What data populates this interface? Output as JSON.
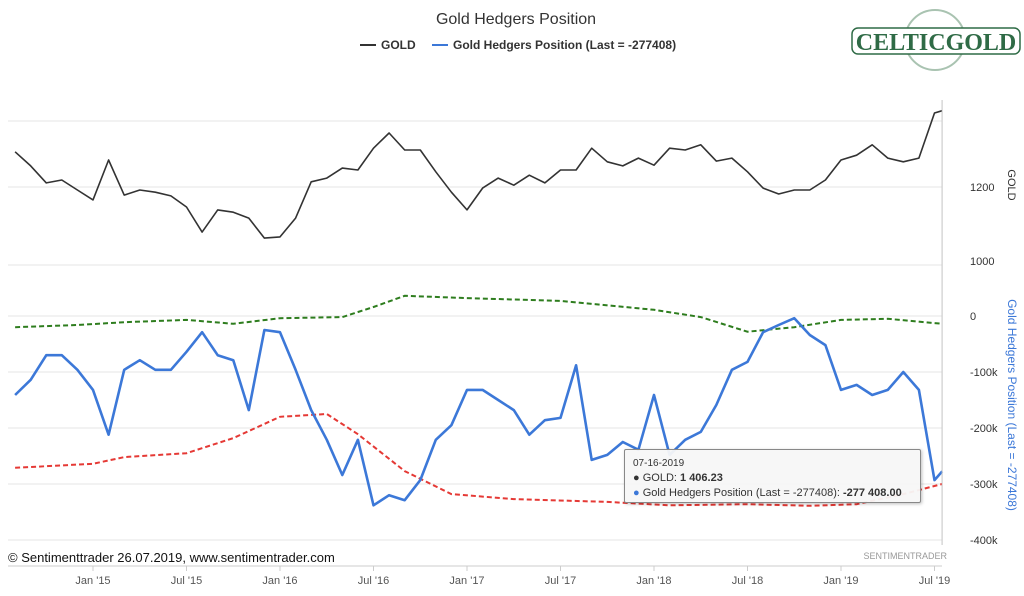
{
  "chart_data": {
    "type": "line",
    "title": "Gold Hedgers Position",
    "legend_position": "top",
    "grid": true,
    "x_ticks": [
      "Jan '15",
      "Jul '15",
      "Jan '16",
      "Jul '16",
      "Jan '17",
      "Jul '17",
      "Jan '18",
      "Jul '18",
      "Jan '19",
      "Jul '19"
    ],
    "axes": {
      "gold": {
        "label": "GOLD",
        "ticks": [
          "1200",
          "1000"
        ],
        "range": [
          1000,
          1400
        ]
      },
      "hedgers": {
        "label": "Gold Hedgers Position (Last = -277408)",
        "ticks": [
          "0",
          "-100k",
          "-200k",
          "-300k",
          "-400k"
        ],
        "range": [
          -400000,
          0
        ]
      }
    },
    "dates": [
      "2014-08-01",
      "2014-09-01",
      "2014-10-01",
      "2014-11-01",
      "2014-12-01",
      "2015-01-01",
      "2015-02-01",
      "2015-03-01",
      "2015-04-01",
      "2015-05-01",
      "2015-06-01",
      "2015-07-01",
      "2015-08-01",
      "2015-09-01",
      "2015-10-01",
      "2015-11-01",
      "2015-12-01",
      "2016-01-01",
      "2016-02-01",
      "2016-03-01",
      "2016-04-01",
      "2016-05-01",
      "2016-06-01",
      "2016-07-01",
      "2016-08-01",
      "2016-09-01",
      "2016-10-01",
      "2016-11-01",
      "2016-12-01",
      "2017-01-01",
      "2017-02-01",
      "2017-03-01",
      "2017-04-01",
      "2017-05-01",
      "2017-06-01",
      "2017-07-01",
      "2017-08-01",
      "2017-09-01",
      "2017-10-01",
      "2017-11-01",
      "2017-12-01",
      "2018-01-01",
      "2018-02-01",
      "2018-03-01",
      "2018-04-01",
      "2018-05-01",
      "2018-06-01",
      "2018-07-01",
      "2018-08-01",
      "2018-09-01",
      "2018-10-01",
      "2018-11-01",
      "2018-12-01",
      "2019-01-01",
      "2019-02-01",
      "2019-03-01",
      "2019-04-01",
      "2019-05-01",
      "2019-06-01",
      "2019-07-01",
      "2019-07-16"
    ],
    "series": [
      {
        "name": "GOLD",
        "axis": "gold",
        "color": "#333333",
        "values": [
          1295,
          1257,
          1211,
          1219,
          1192,
          1165,
          1273,
          1178,
          1192,
          1186,
          1176,
          1146,
          1078,
          1138,
          1132,
          1116,
          1062,
          1065,
          1116,
          1214,
          1224,
          1251,
          1246,
          1305,
          1346,
          1300,
          1300,
          1241,
          1186,
          1138,
          1197,
          1224,
          1205,
          1232,
          1211,
          1246,
          1246,
          1305,
          1268,
          1257,
          1278,
          1259,
          1305,
          1300,
          1314,
          1270,
          1278,
          1241,
          1197,
          1181,
          1192,
          1192,
          1219,
          1273,
          1286,
          1314,
          1278,
          1268,
          1278,
          1400,
          1406.23
        ]
      },
      {
        "name": "Gold Hedgers Position (Last = -277408)",
        "axis": "hedgers",
        "color": "#3c78d8",
        "values": [
          -141000,
          -114000,
          -70000,
          -70000,
          -96000,
          -132000,
          -212000,
          -96000,
          -79000,
          -96000,
          -96000,
          -64000,
          -29000,
          -70000,
          -79000,
          -168000,
          -25000,
          -29000,
          -96000,
          -168000,
          -221000,
          -284000,
          -221000,
          -338000,
          -320000,
          -329000,
          -293000,
          -221000,
          -195000,
          -132000,
          -132000,
          -150000,
          -168000,
          -212000,
          -186000,
          -182000,
          -88000,
          -257000,
          -248000,
          -225000,
          -239000,
          -141000,
          -248000,
          -221000,
          -207000,
          -159000,
          -96000,
          -82000,
          -29000,
          -16000,
          -4000,
          -34000,
          -52000,
          -132000,
          -123000,
          -141000,
          -132000,
          -100000,
          -132000,
          -293000,
          -277408
        ]
      }
    ],
    "bands": [
      {
        "axis": "hedgers",
        "color": "#2e7d1e",
        "style": "dashed",
        "points": [
          [
            "2014-08-01",
            -20000
          ],
          [
            "2014-12-01",
            -16000
          ],
          [
            "2015-03-01",
            -11000
          ],
          [
            "2015-07-01",
            -7000
          ],
          [
            "2015-10-01",
            -14000
          ],
          [
            "2016-01-01",
            -4000
          ],
          [
            "2016-05-01",
            -2000
          ],
          [
            "2016-07-01",
            16000
          ],
          [
            "2016-09-01",
            36000
          ],
          [
            "2017-01-01",
            32000
          ],
          [
            "2017-07-01",
            27000
          ],
          [
            "2018-01-01",
            11000
          ],
          [
            "2018-04-01",
            -2000
          ],
          [
            "2018-07-01",
            -28000
          ],
          [
            "2018-10-01",
            -20000
          ],
          [
            "2019-01-01",
            -7000
          ],
          [
            "2019-04-01",
            -5000
          ],
          [
            "2019-07-16",
            -14000
          ]
        ]
      },
      {
        "axis": "hedgers",
        "color": "#e53935",
        "style": "dashed",
        "points": [
          [
            "2014-08-01",
            -271000
          ],
          [
            "2015-01-01",
            -264000
          ],
          [
            "2015-03-01",
            -252000
          ],
          [
            "2015-07-01",
            -245000
          ],
          [
            "2015-10-01",
            -218000
          ],
          [
            "2016-01-01",
            -180000
          ],
          [
            "2016-04-01",
            -175000
          ],
          [
            "2016-06-01",
            -211000
          ],
          [
            "2016-09-01",
            -277000
          ],
          [
            "2016-12-01",
            -318000
          ],
          [
            "2017-04-01",
            -327000
          ],
          [
            "2017-10-01",
            -332000
          ],
          [
            "2018-02-01",
            -338000
          ],
          [
            "2018-07-01",
            -336000
          ],
          [
            "2018-11-01",
            -339000
          ],
          [
            "2019-02-01",
            -336000
          ],
          [
            "2019-05-01",
            -318000
          ],
          [
            "2019-07-16",
            -300000
          ]
        ]
      }
    ]
  },
  "tooltip": {
    "date": "07-16-2019",
    "gold_label": "GOLD: ",
    "gold_value": "1 406.23",
    "hedgers_label": "Gold Hedgers Position (Last = -277408): ",
    "hedgers_value": "-277 408.00"
  },
  "legend": {
    "gold": "GOLD",
    "hedgers": "Gold Hedgers Position (Last = -277408)"
  },
  "credit": "© Sentimenttrader 26.07.2019, www.sentimentrader.com",
  "watermark": "SENTIMENTRADER",
  "logo": "CELTICGOLD"
}
